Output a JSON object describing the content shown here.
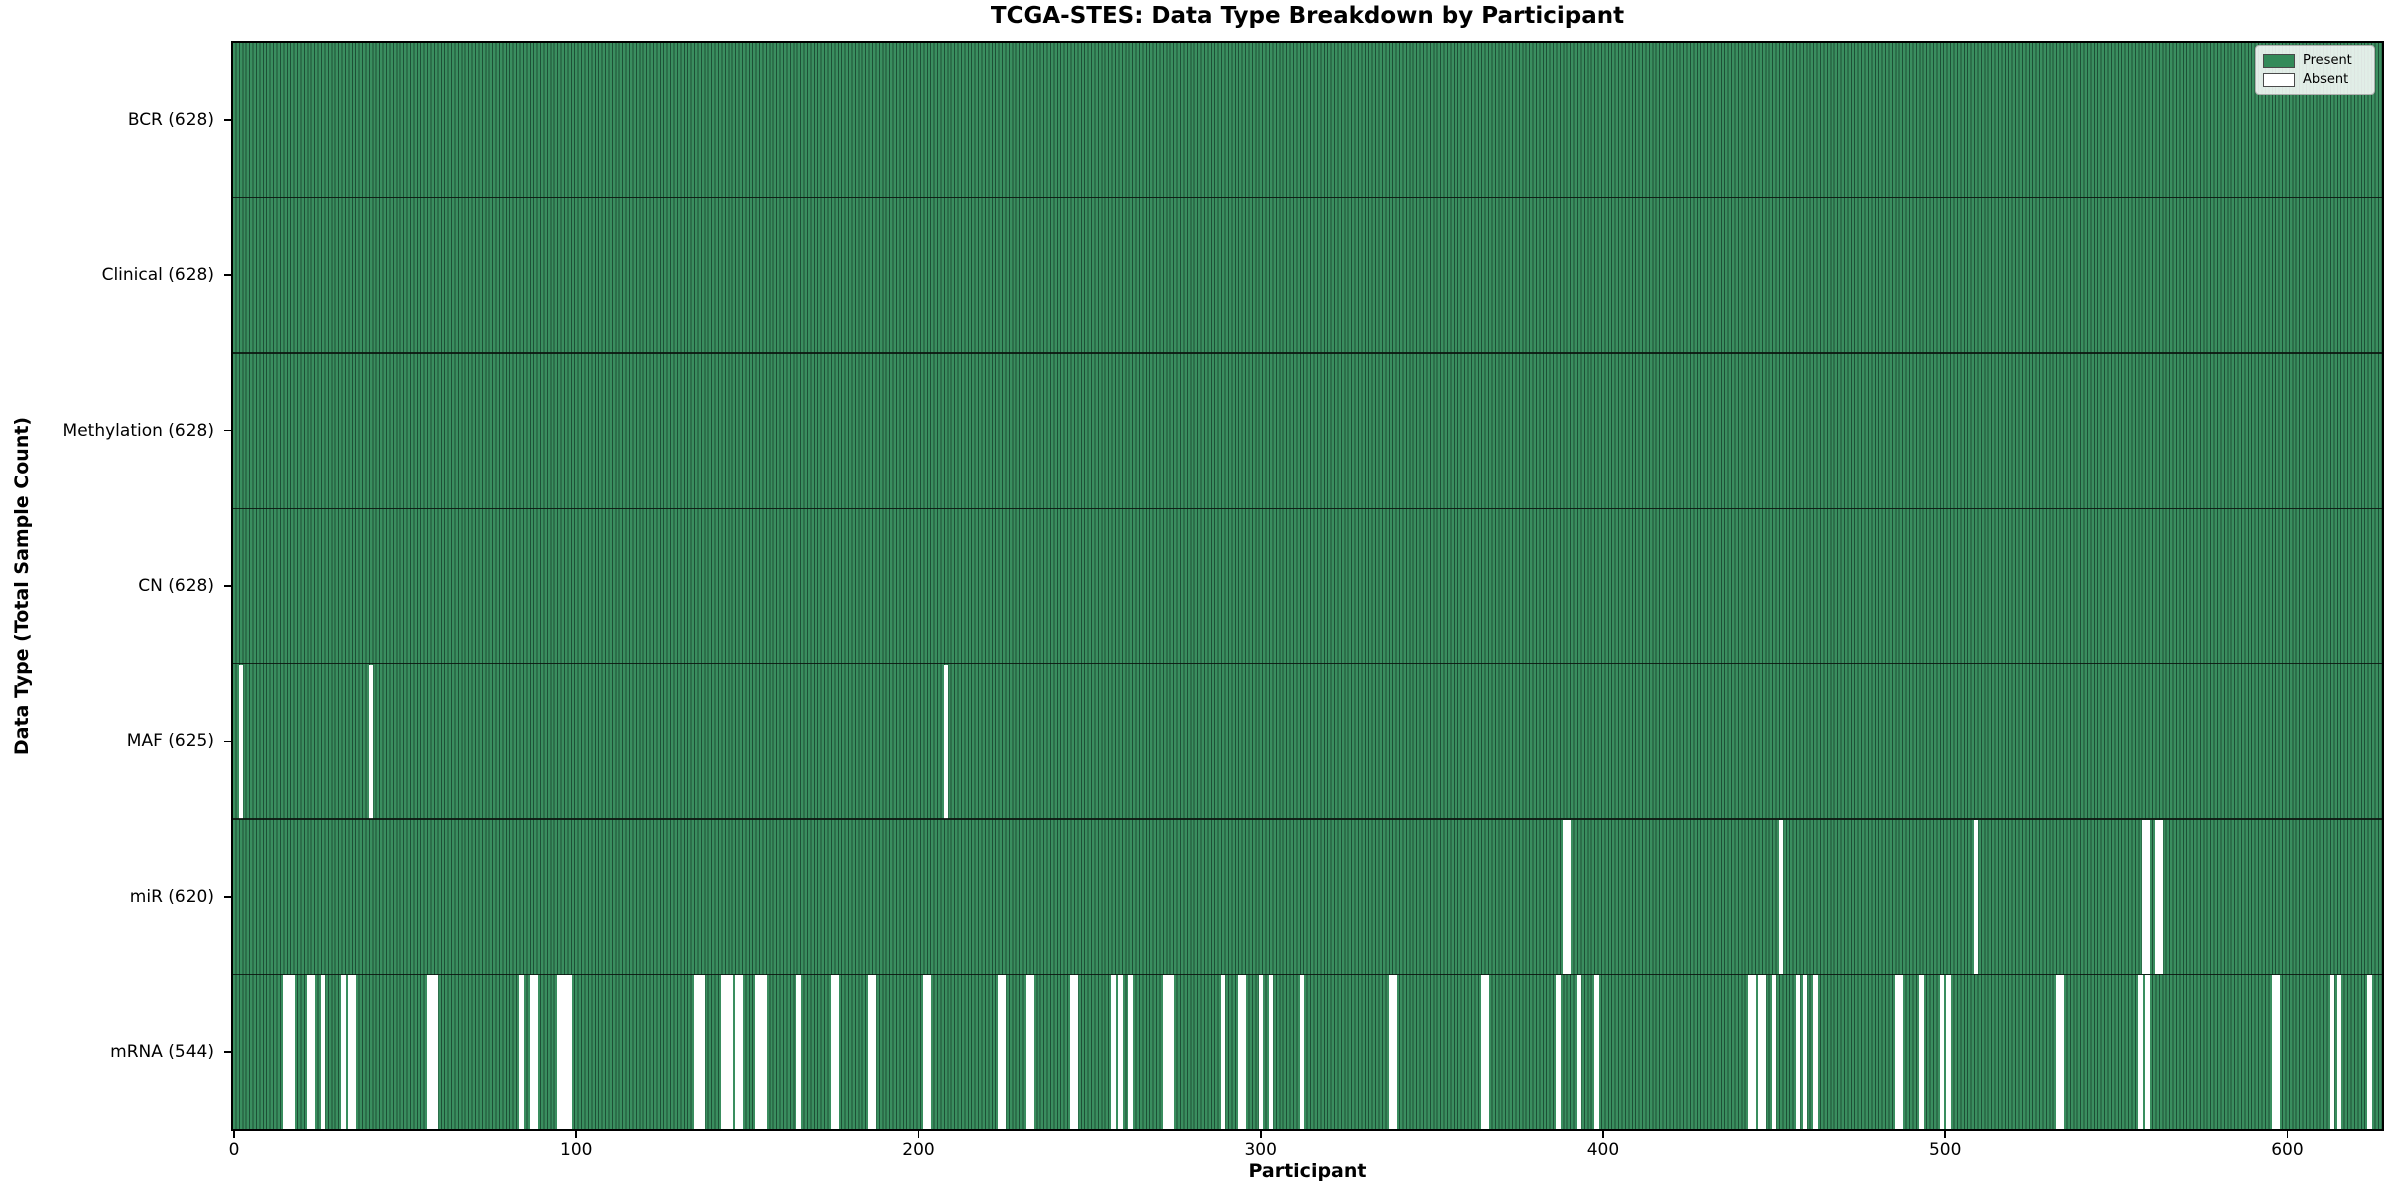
{
  "title": "TCGA-STES: Data Type Breakdown by Participant",
  "colors": {
    "bar_fill": "#3a8e5f",
    "bar_edge": "#1d5036",
    "absent": "#ffffff",
    "plot_border": "#000000",
    "legend_swatch_present": "#338a59",
    "legend_swatch_absent": "#ffffff"
  },
  "legend": {
    "items": [
      {
        "label": "Present",
        "color": "#338a59"
      },
      {
        "label": "Absent",
        "color": "#ffffff"
      }
    ]
  },
  "chart_data": {
    "type": "heatmap",
    "title": "TCGA-STES: Data Type Breakdown by Participant",
    "xlabel": "Participant",
    "ylabel": "Data Type (Total Sample Count)",
    "legend_position": "upper right",
    "grid": false,
    "n_participants": 628,
    "x_range": [
      0,
      628
    ],
    "x_ticks": [
      0,
      100,
      200,
      300,
      400,
      500,
      600
    ],
    "cell_values": {
      "present": 1,
      "absent": 0
    },
    "rows": [
      {
        "label": "BCR (628)",
        "name": "BCR",
        "total": 628,
        "missing": []
      },
      {
        "label": "Clinical (628)",
        "name": "Clinical",
        "total": 628,
        "missing": []
      },
      {
        "label": "Methylation (628)",
        "name": "Methylation",
        "total": 628,
        "missing": []
      },
      {
        "label": "CN (628)",
        "name": "CN",
        "total": 628,
        "missing": []
      },
      {
        "label": "MAF (625)",
        "name": "MAF",
        "total": 625,
        "missing": [
          2,
          40,
          208
        ]
      },
      {
        "label": "miR (620)",
        "name": "miR",
        "total": 620,
        "missing": [
          389,
          390,
          452,
          509,
          558,
          559,
          562,
          563
        ]
      },
      {
        "label": "mRNA (544)",
        "name": "mRNA",
        "total": 544,
        "missing": [
          15,
          16,
          17,
          22,
          23,
          26,
          32,
          34,
          35,
          57,
          58,
          59,
          84,
          87,
          88,
          95,
          96,
          97,
          98,
          135,
          136,
          137,
          143,
          144,
          145,
          147,
          148,
          153,
          154,
          155,
          165,
          175,
          176,
          186,
          187,
          202,
          203,
          224,
          225,
          232,
          233,
          245,
          246,
          257,
          259,
          262,
          272,
          273,
          274,
          289,
          294,
          295,
          300,
          303,
          312,
          338,
          339,
          365,
          366,
          387,
          393,
          398,
          443,
          444,
          446,
          447,
          450,
          457,
          459,
          462,
          486,
          487,
          493,
          499,
          501,
          533,
          534,
          557,
          559,
          596,
          597,
          613,
          615,
          624
        ]
      }
    ]
  }
}
